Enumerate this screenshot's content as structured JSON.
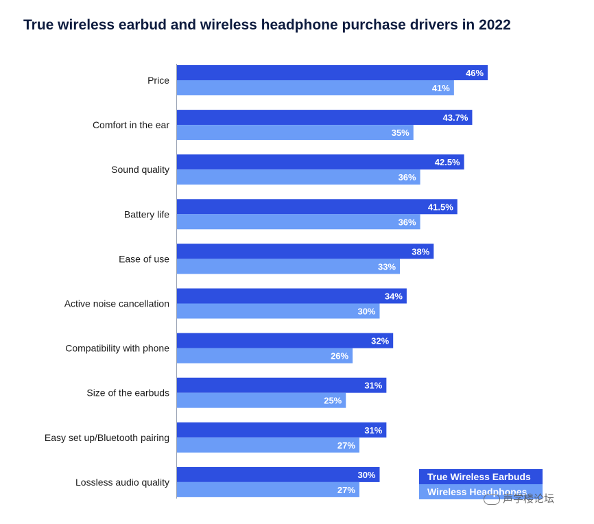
{
  "chart_data": {
    "type": "bar",
    "orientation": "horizontal",
    "title": "True wireless earbud and wireless headphone purchase drivers in 2022",
    "categories": [
      "Price",
      "Comfort in the ear",
      "Sound quality",
      "Battery life",
      "Ease of use",
      "Active noise cancellation",
      "Compatibility with phone",
      "Size of the earbuds",
      "Easy set up/Bluetooth pairing",
      "Lossless audio quality"
    ],
    "series": [
      {
        "name": "True Wireless Earbuds",
        "color": "#2d4fe0",
        "values": [
          46,
          43.7,
          42.5,
          41.5,
          38,
          34,
          32,
          31,
          31,
          30
        ],
        "labels": [
          "46%",
          "43.7%",
          "42.5%",
          "41.5%",
          "38%",
          "34%",
          "32%",
          "31%",
          "31%",
          "30%"
        ]
      },
      {
        "name": "Wireless Headphones",
        "color": "#6b9cf7",
        "values": [
          41,
          35,
          36,
          36,
          33,
          30,
          26,
          25,
          27,
          27
        ],
        "labels": [
          "41%",
          "35%",
          "36%",
          "36%",
          "33%",
          "30%",
          "26%",
          "25%",
          "27%",
          "27%"
        ]
      }
    ],
    "xlabel": "",
    "ylabel": "",
    "xlim": [
      0,
      50
    ],
    "grid": false,
    "legend_position": "bottom-right"
  },
  "watermark": {
    "text": "声学楼论坛"
  }
}
